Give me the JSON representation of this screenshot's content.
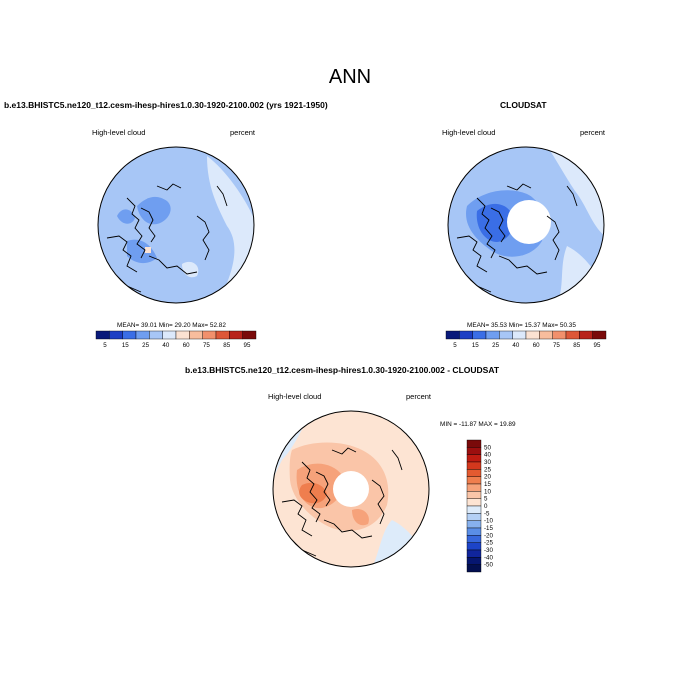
{
  "figure": {
    "title": "ANN"
  },
  "panels": [
    {
      "title": "b.e13.BHISTC5.ne120_t12.cesm-ihesp-hires1.0.30-1920-2100.002 (yrs 1921-1950)",
      "left_label": "High-level cloud",
      "right_label": "percent",
      "stats": "MEAN=  39.01  Min=  29.20  Max=  52.82",
      "colorbar_ticks": [
        "5",
        "15",
        "25",
        "40",
        "60",
        "75",
        "85",
        "95"
      ]
    },
    {
      "title": "CLOUDSAT",
      "left_label": "High-level cloud",
      "right_label": "percent",
      "stats": "MEAN=  35.53  Min=  15.37  Max=  50.35",
      "colorbar_ticks": [
        "5",
        "15",
        "25",
        "40",
        "60",
        "75",
        "85",
        "95"
      ]
    },
    {
      "title": "b.e13.BHISTC5.ne120_t12.cesm-ihesp-hires1.0.30-1920-2100.002 - CLOUDSAT",
      "left_label": "High-level cloud",
      "right_label": "percent",
      "stats": "MIN = -11.87 MAX =  19.89",
      "colorbar_ticks": [
        "50",
        "40",
        "30",
        "25",
        "20",
        "15",
        "10",
        "5",
        "0",
        "-5",
        "-10",
        "-15",
        "-20",
        "-25",
        "-30",
        "-40",
        "-50"
      ]
    }
  ],
  "chart_data": [
    {
      "type": "heatmap",
      "projection": "north-polar-stereographic",
      "variable": "High-level cloud",
      "units": "percent",
      "mean": 39.01,
      "min": 29.2,
      "max": 52.82,
      "levels": [
        5,
        15,
        25,
        40,
        60,
        75,
        85,
        95
      ],
      "colors": [
        "#0a1a7a",
        "#1d3fc4",
        "#3a6ee6",
        "#6f9ef0",
        "#a7c6f6",
        "#dce9fb",
        "#fbe2d2",
        "#f8bd9d",
        "#f1906c",
        "#dd5738",
        "#b8221a",
        "#7a0a0a"
      ]
    },
    {
      "type": "heatmap",
      "projection": "north-polar-stereographic",
      "variable": "High-level cloud",
      "units": "percent",
      "mean": 35.53,
      "min": 15.37,
      "max": 50.35,
      "levels": [
        5,
        15,
        25,
        40,
        60,
        75,
        85,
        95
      ],
      "colors": [
        "#0a1a7a",
        "#1d3fc4",
        "#3a6ee6",
        "#6f9ef0",
        "#a7c6f6",
        "#dce9fb",
        "#fbe2d2",
        "#f8bd9d",
        "#f1906c",
        "#dd5738",
        "#b8221a",
        "#7a0a0a"
      ]
    },
    {
      "type": "heatmap",
      "projection": "north-polar-stereographic",
      "variable": "High-level cloud",
      "units": "percent",
      "min": -11.87,
      "max": 19.89,
      "levels": [
        -50,
        -40,
        -30,
        -25,
        -20,
        -15,
        -10,
        -5,
        0,
        5,
        10,
        15,
        20,
        25,
        30,
        40,
        50
      ],
      "colors": [
        "#7a0a0a",
        "#9c0f0f",
        "#bf1c12",
        "#d4381d",
        "#e45a30",
        "#ef7e4e",
        "#f6a27a",
        "#fac5a8",
        "#fde4d3",
        "#ddebfa",
        "#b4d0f5",
        "#87b1ee",
        "#5a8ee7",
        "#3767dc",
        "#1d44c8",
        "#10259c",
        "#061670",
        "#030f50"
      ]
    }
  ]
}
